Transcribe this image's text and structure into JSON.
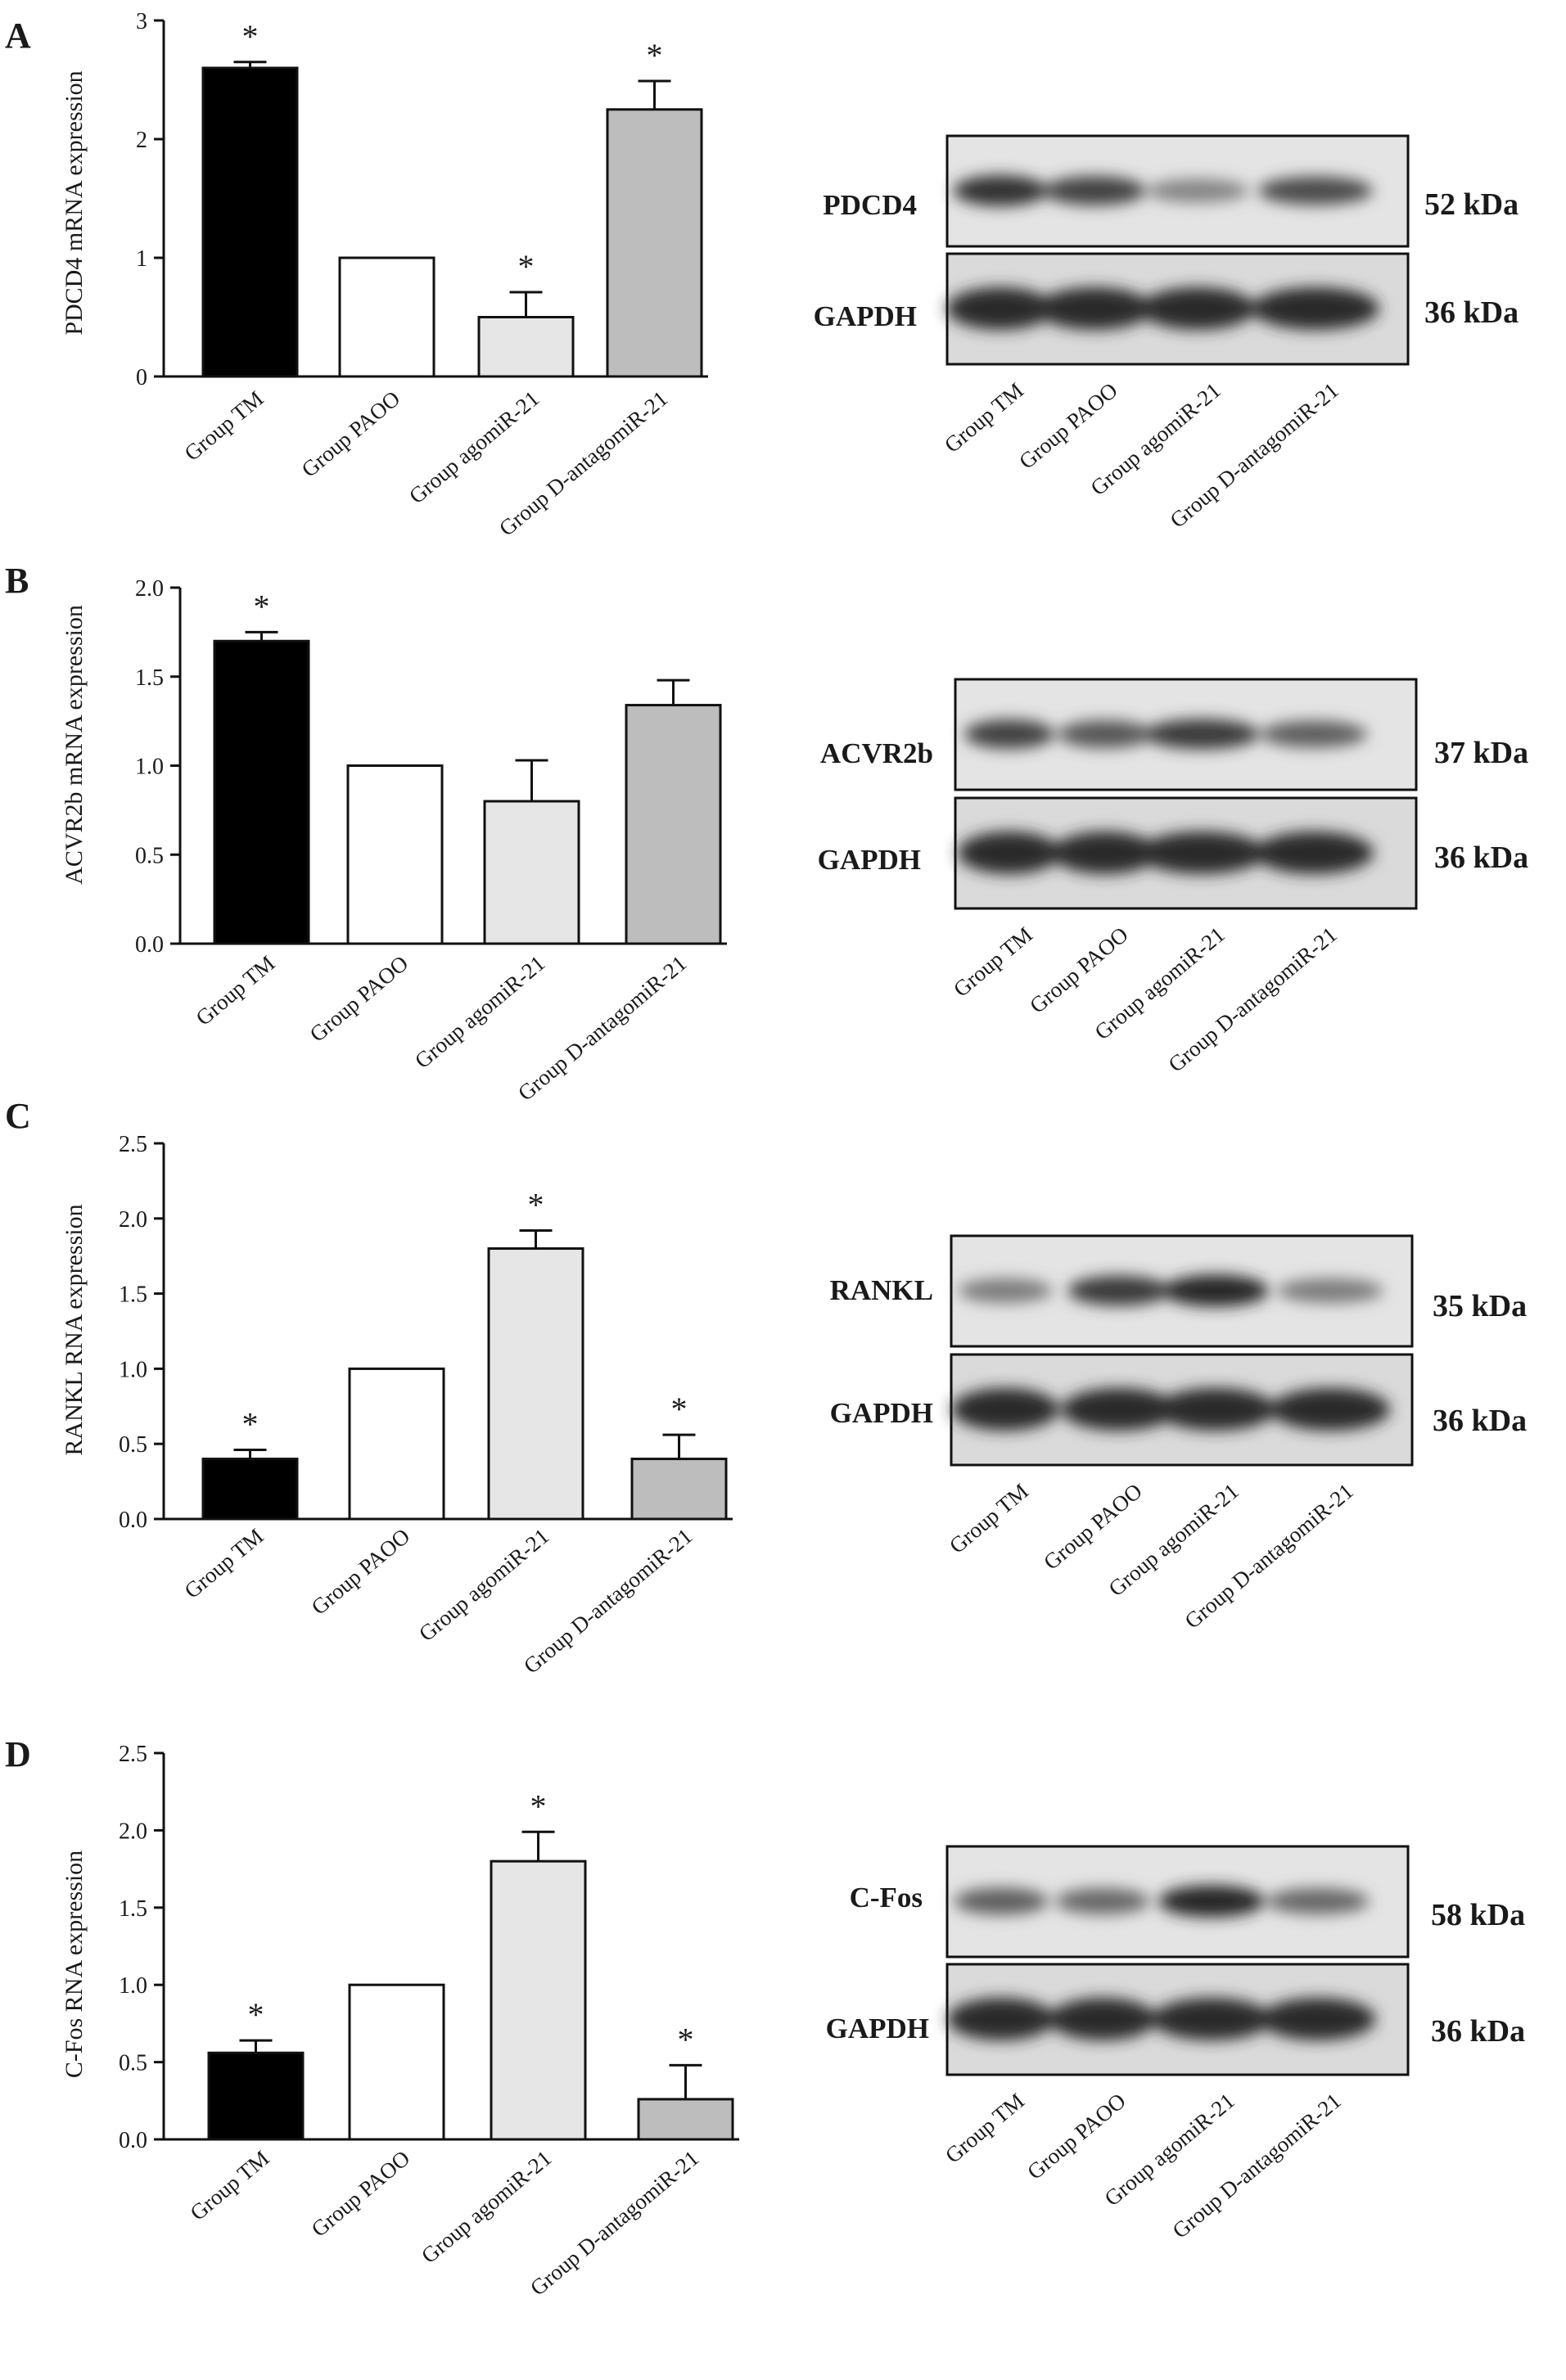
{
  "group_labels": [
    "Group TM",
    "Group PAOO",
    "Group agomiR-21",
    "Group D-antagomiR-21"
  ],
  "panels": [
    {
      "letter": "A",
      "chart_data": {
        "type": "bar",
        "ylabel": "PDCD4 mRNA expression",
        "ylim": [
          0,
          3
        ],
        "yticks": [
          "0",
          "1",
          "2",
          "3"
        ],
        "categories": [
          "Group TM",
          "Group PAOO",
          "Group agomiR-21",
          "Group D-antagomiR-21"
        ],
        "values": [
          2.6,
          1.0,
          0.5,
          2.25
        ],
        "errors": [
          0.05,
          0,
          0.21,
          0.24
        ],
        "significant": [
          true,
          false,
          true,
          true
        ],
        "significance_mark": "*",
        "bar_colors": [
          "#000000",
          "#ffffff",
          "#e6e6e6",
          "#bdbdbd"
        ]
      },
      "blot": {
        "protein": "PDCD4",
        "protein_kda": "52 kDa",
        "loading": "GAPDH",
        "loading_kda": "36 kDa",
        "protein_band_intensity": [
          0.9,
          0.8,
          0.45,
          0.75
        ]
      }
    },
    {
      "letter": "B",
      "chart_data": {
        "type": "bar",
        "ylabel": "ACVR2b mRNA expression",
        "ylim": [
          0,
          2.0
        ],
        "yticks": [
          "0.0",
          "0.5",
          "1.0",
          "1.5",
          "2.0"
        ],
        "categories": [
          "Group TM",
          "Group PAOO",
          "Group agomiR-21",
          "Group D-antagomiR-21"
        ],
        "values": [
          1.7,
          1.0,
          0.8,
          1.34
        ],
        "errors": [
          0.05,
          0,
          0.23,
          0.14
        ],
        "significant": [
          true,
          false,
          false,
          false
        ],
        "significance_mark": "*",
        "bar_colors": [
          "#000000",
          "#ffffff",
          "#e6e6e6",
          "#bdbdbd"
        ]
      },
      "blot": {
        "protein": "ACVR2b",
        "protein_kda": "37 kDa",
        "loading": "GAPDH",
        "loading_kda": "36 kDa",
        "protein_band_intensity": [
          0.8,
          0.7,
          0.85,
          0.65
        ]
      }
    },
    {
      "letter": "C",
      "chart_data": {
        "type": "bar",
        "ylabel": "RANKL  RNA expression",
        "ylim": [
          0,
          2.5
        ],
        "yticks": [
          "0.0",
          "0.5",
          "1.0",
          "1.5",
          "2.0",
          "2.5"
        ],
        "categories": [
          "Group TM",
          "Group PAOO",
          "Group agomiR-21",
          "Group D-antagomiR-21"
        ],
        "values": [
          0.4,
          1.0,
          1.8,
          0.4
        ],
        "errors": [
          0.06,
          0,
          0.12,
          0.16
        ],
        "significant": [
          true,
          false,
          true,
          true
        ],
        "significance_mark": "*",
        "bar_colors": [
          "#000000",
          "#ffffff",
          "#e6e6e6",
          "#bdbdbd"
        ]
      },
      "blot": {
        "protein": "RANKL",
        "protein_kda": "35 kDa",
        "loading": "GAPDH",
        "loading_kda": "36 kDa",
        "protein_band_intensity": [
          0.5,
          0.85,
          0.95,
          0.5
        ]
      }
    },
    {
      "letter": "D",
      "chart_data": {
        "type": "bar",
        "ylabel": "C-Fos  RNA expression",
        "ylim": [
          0,
          2.5
        ],
        "yticks": [
          "0.0",
          "0.5",
          "1.0",
          "1.5",
          "2.0",
          "2.5"
        ],
        "categories": [
          "Group TM",
          "Group PAOO",
          "Group agomiR-21",
          "Group D-antagomiR-21"
        ],
        "values": [
          0.56,
          1.0,
          1.8,
          0.26
        ],
        "errors": [
          0.08,
          0,
          0.19,
          0.22
        ],
        "significant": [
          true,
          false,
          true,
          true
        ],
        "significance_mark": "*",
        "bar_colors": [
          "#000000",
          "#ffffff",
          "#e6e6e6",
          "#bdbdbd"
        ]
      },
      "blot": {
        "protein": "C-Fos",
        "protein_kda": "58 kDa",
        "loading": "GAPDH",
        "loading_kda": "36 kDa",
        "protein_band_intensity": [
          0.65,
          0.6,
          0.95,
          0.6
        ]
      }
    }
  ]
}
